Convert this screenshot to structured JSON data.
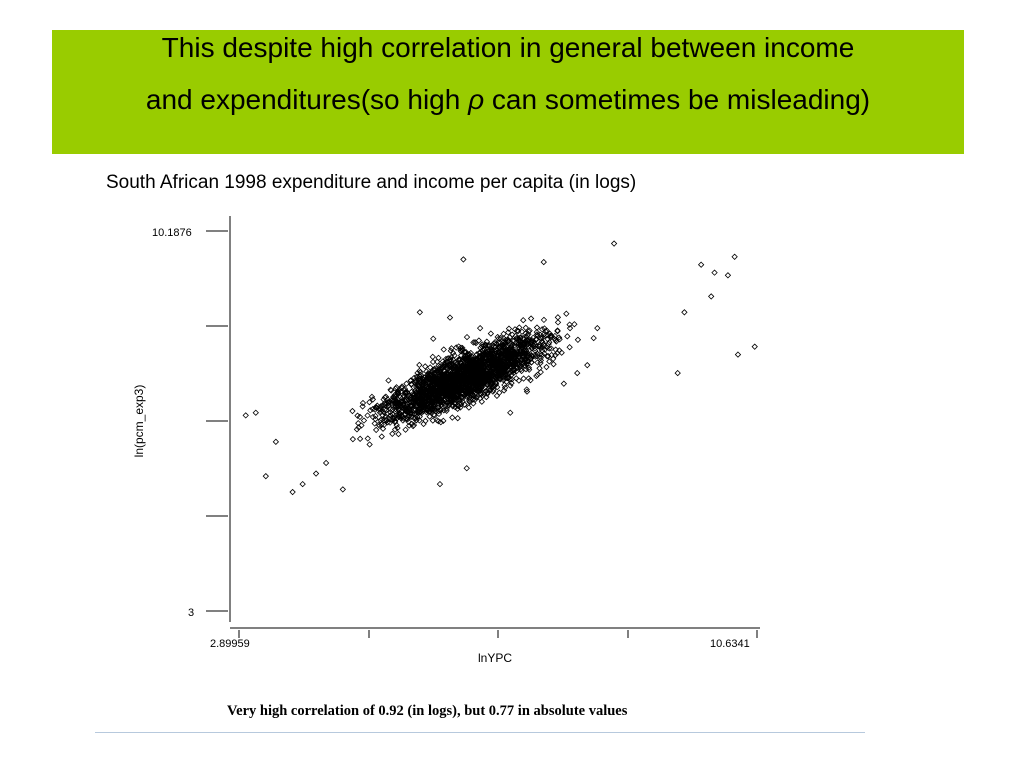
{
  "slide": {
    "title_line1": "This despite high correlation in general between income",
    "title_line2_pre": "and expenditures(so high ",
    "title_rho": "ρ",
    "title_line2_post": " can sometimes be misleading)",
    "title_band_color": "#99cc00",
    "subtitle": "South African 1998 expenditure and income per capita (in logs)",
    "caption": "Very high correlation of 0.92 (in logs), but 0.77 in absolute values"
  },
  "chart_data": {
    "type": "scatter",
    "xlabel": "lnYPC",
    "ylabel": "ln(pcm_exp3)",
    "xlim": [
      2.89959,
      10.6341
    ],
    "ylim": [
      3,
      10.1876
    ],
    "x_tick_labels": [
      "2.89959",
      "10.6341"
    ],
    "y_tick_labels": [
      "10.1876",
      "3"
    ],
    "marker": "hollow-diamond",
    "grid": false,
    "correlation_logs": 0.92,
    "correlation_absolute": 0.77,
    "points": [
      [
        3.0,
        6.7
      ],
      [
        3.15,
        6.75
      ],
      [
        3.45,
        6.2
      ],
      [
        3.3,
        5.55
      ],
      [
        3.7,
        5.25
      ],
      [
        3.85,
        5.4
      ],
      [
        4.05,
        5.6
      ],
      [
        4.2,
        5.8
      ],
      [
        4.6,
        6.25
      ],
      [
        4.85,
        6.15
      ],
      [
        5.25,
        6.95
      ],
      [
        5.4,
        7.3
      ],
      [
        5.9,
        5.4
      ],
      [
        5.8,
        8.15
      ],
      [
        4.45,
        5.3
      ],
      [
        6.3,
        5.7
      ],
      [
        6.05,
        8.55
      ],
      [
        5.6,
        8.65
      ],
      [
        6.25,
        9.65
      ],
      [
        6.5,
        8.35
      ],
      [
        7.45,
        8.05
      ],
      [
        7.2,
        7.15
      ],
      [
        6.95,
        6.75
      ],
      [
        7.75,
        7.3
      ],
      [
        7.95,
        7.5
      ],
      [
        8.1,
        7.65
      ],
      [
        8.5,
        9.95
      ],
      [
        9.55,
        8.65
      ],
      [
        9.45,
        7.5
      ],
      [
        9.95,
        8.95
      ],
      [
        10.35,
        7.85
      ],
      [
        10.6,
        8.0
      ],
      [
        10.2,
        9.35
      ],
      [
        10.3,
        9.7
      ],
      [
        10.0,
        9.4
      ],
      [
        9.8,
        9.55
      ],
      [
        7.45,
        9.6
      ],
      [
        8.25,
        8.35
      ]
    ]
  }
}
